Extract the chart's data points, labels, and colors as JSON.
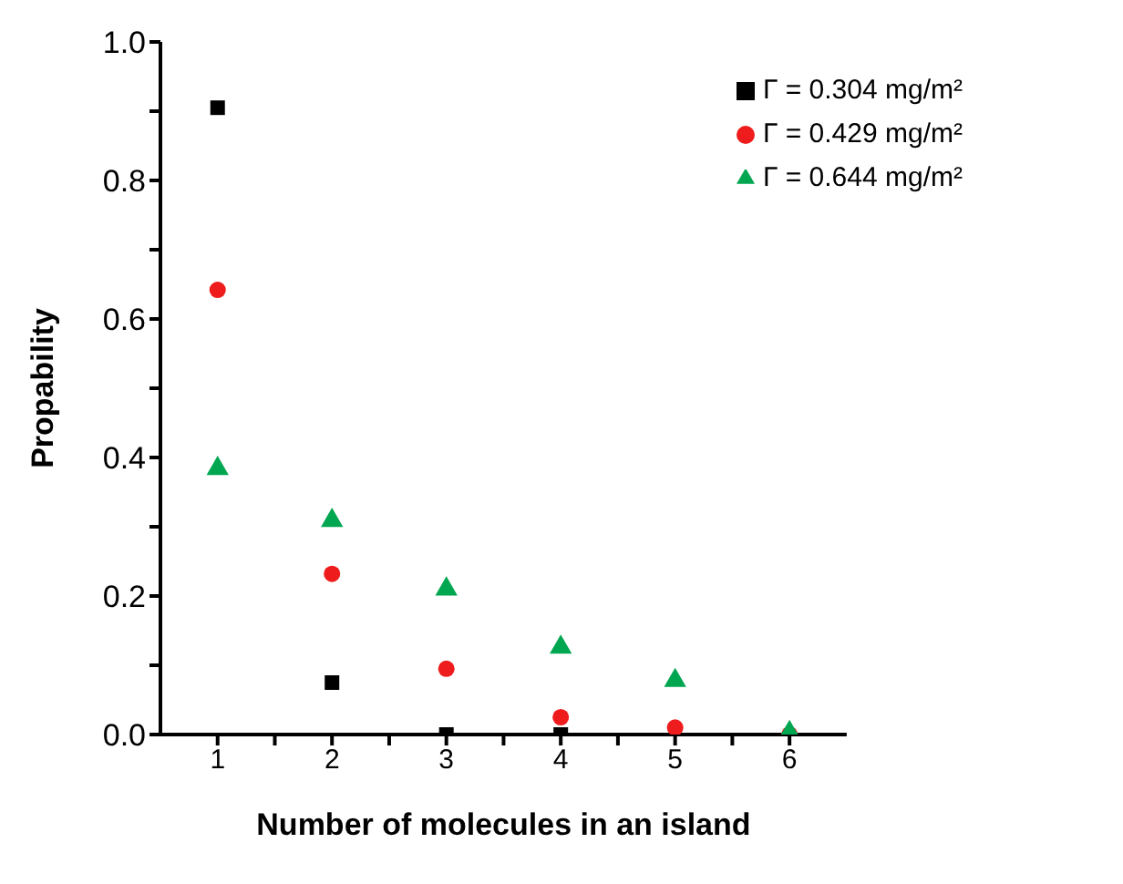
{
  "chart_data": {
    "type": "scatter",
    "xlabel": "Number of molecules in an island",
    "ylabel": "Propability",
    "x": [
      1,
      2,
      3,
      4,
      5,
      6
    ],
    "series": [
      {
        "name": "Γ = 0.304 mg/m²",
        "color": "#000000",
        "marker": "square",
        "values": [
          0.905,
          0.075,
          0,
          0,
          null,
          null
        ]
      },
      {
        "name": "Γ = 0.429 mg/m²",
        "color": "#ee1c1c",
        "marker": "circle",
        "values": [
          0.642,
          0.232,
          0.095,
          0.025,
          0.01,
          0
        ]
      },
      {
        "name": "Γ = 0.644 mg/m²",
        "color": "#00a650",
        "marker": "triangle",
        "values": [
          0.384,
          0.309,
          0.21,
          0.126,
          0.078,
          0.003
        ]
      }
    ],
    "xlim": [
      0.5,
      6.5
    ],
    "xticks": [
      1,
      {
        "value": 1.5,
        "label": null
      },
      2,
      {
        "value": 2.5,
        "label": null
      },
      3,
      {
        "value": 3.5,
        "label": null
      },
      4,
      {
        "value": 4.5,
        "label": null
      },
      5,
      {
        "value": 5.5,
        "label": null
      },
      6
    ],
    "ylim": [
      0,
      1
    ],
    "yticks": [
      {
        "value": 0,
        "label": "0.0"
      },
      {
        "value": 0.1,
        "label": null
      },
      0.2,
      {
        "value": 0.3,
        "label": null
      },
      0.4,
      {
        "value": 0.5,
        "label": null
      },
      0.6,
      {
        "value": 0.7,
        "label": null
      },
      0.8,
      {
        "value": 0.9,
        "label": null
      },
      {
        "value": 1,
        "label": "1.0"
      }
    ],
    "grid": false,
    "legend": "top right"
  }
}
